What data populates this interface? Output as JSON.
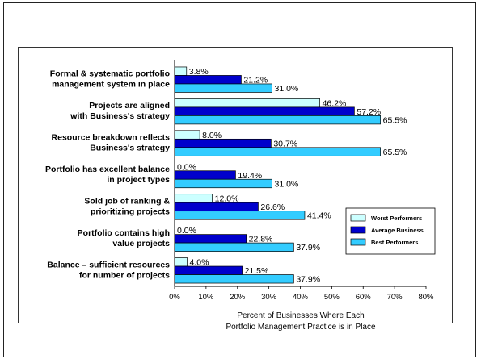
{
  "chart_data": {
    "type": "bar",
    "orientation": "horizontal",
    "categories": [
      [
        "Formal & systematic portfolio",
        "management system in place"
      ],
      [
        "Projects are aligned",
        "with Business's strategy"
      ],
      [
        "Resource breakdown reflects",
        "Business's strategy"
      ],
      [
        "Portfolio has excellent balance",
        "in project types"
      ],
      [
        "Sold job of ranking &",
        "prioritizing projects"
      ],
      [
        "Portfolio contains high",
        "value projects"
      ],
      [
        "Balance – sufficient resources",
        "for number of projects"
      ]
    ],
    "series": [
      {
        "name": "Worst Performers",
        "color": "#ccffff",
        "values": [
          3.8,
          46.2,
          8.0,
          0.0,
          12.0,
          0.0,
          4.0
        ],
        "labels": [
          "3.8%",
          "46.2%",
          "8.0%",
          "0.0%",
          "12.0%",
          "0.0%",
          "4.0%"
        ]
      },
      {
        "name": "Average Business",
        "color": "#0000cc",
        "values": [
          21.2,
          57.2,
          30.7,
          19.4,
          26.6,
          22.8,
          21.5
        ],
        "labels": [
          "21.2%",
          "57.2%",
          "30.7%",
          "19.4%",
          "26.6%",
          "22.8%",
          "21.5%"
        ]
      },
      {
        "name": "Best Performers",
        "color": "#33ccff",
        "values": [
          31.0,
          65.5,
          65.5,
          31.0,
          41.4,
          37.9,
          37.9
        ],
        "labels": [
          "31.0%",
          "65.5%",
          "65.5%",
          "31.0%",
          "41.4%",
          "37.9%",
          "37.9%"
        ]
      }
    ],
    "xlim": [
      0,
      80
    ],
    "xticks": [
      "0%",
      "10%",
      "20%",
      "30%",
      "40%",
      "50%",
      "60%",
      "70%",
      "80%"
    ],
    "xlabel": [
      "Percent of Businesses Where Each",
      "Portfolio Management Practice is in Place"
    ],
    "legend_position": "right"
  }
}
